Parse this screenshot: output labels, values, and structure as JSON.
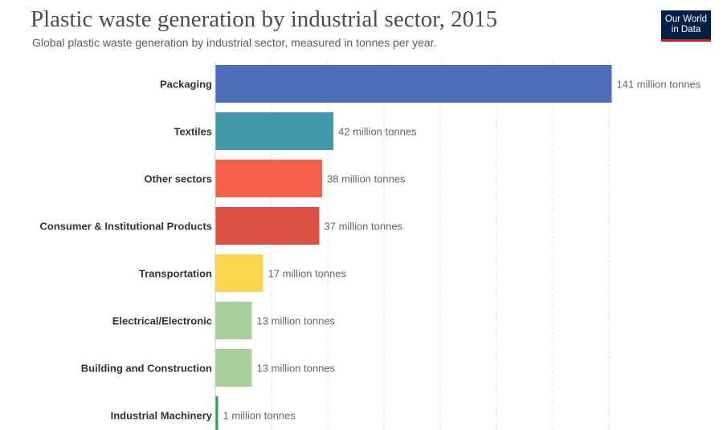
{
  "header": {
    "title": "Plastic waste generation by industrial sector, 2015",
    "subtitle": "Global plastic waste generation by industrial sector, measured in tonnes per year."
  },
  "logo": {
    "line1": "Our World",
    "line2": "in Data"
  },
  "chart_data": {
    "type": "bar",
    "orientation": "horizontal",
    "title": "Plastic waste generation by industrial sector, 2015",
    "unit": "million tonnes",
    "xlim": [
      0,
      150
    ],
    "grid": true,
    "categories": [
      "Packaging",
      "Textiles",
      "Other sectors",
      "Consumer & Institutional Products",
      "Transportation",
      "Electrical/Electronic",
      "Building and Construction",
      "Industrial Machinery"
    ],
    "values": [
      141,
      42,
      38,
      37,
      17,
      13,
      13,
      1
    ],
    "value_labels": [
      "141 million tonnes",
      "42 million tonnes",
      "38 million tonnes",
      "37 million tonnes",
      "17 million tonnes",
      "13 million tonnes",
      "13 million tonnes",
      "1 million tonnes"
    ],
    "colors": [
      "#4c6fb8",
      "#4198a8",
      "#f6604b",
      "#dd5044",
      "#fcd64f",
      "#a9cf9b",
      "#a9cf9b",
      "#3a9d4f"
    ]
  }
}
